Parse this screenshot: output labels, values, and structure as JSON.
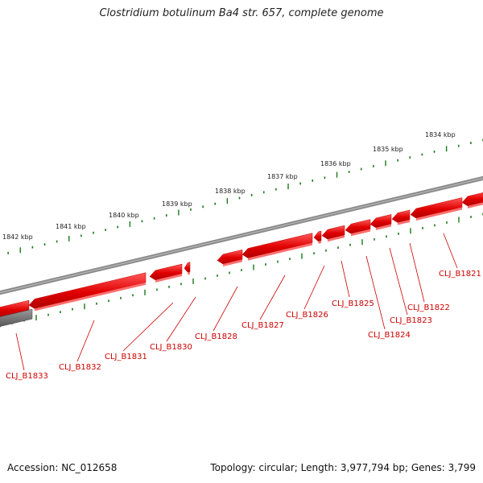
{
  "title": "Clostridium botulinum Ba4 str. 657, complete genome",
  "footer": {
    "accession": "Accession: NC_012658",
    "summary": "Topology: circular; Length: 3,977,794 bp; Genes: 3,799"
  },
  "kbp_labels": [
    "1834 kbp",
    "1835 kbp",
    "1836 kbp",
    "1837 kbp",
    "1838 kbp",
    "1839 kbp",
    "1840 kbp",
    "1841 kbp",
    "1842 kbp"
  ],
  "genes": [
    "CLJ_B1821",
    "CLJ_B1822",
    "CLJ_B1823",
    "CLJ_B1824",
    "CLJ_B1825",
    "CLJ_B1826",
    "CLJ_B1827",
    "CLJ_B1828",
    "CLJ_B1830",
    "CLJ_B1831",
    "CLJ_B1832",
    "CLJ_B1833"
  ],
  "colors": {
    "gene_fill": "#ee0000",
    "gene_light": "#ff6f6f",
    "backbone": "#808080",
    "tick": "#1a7a1a",
    "label": "#cc0000"
  }
}
